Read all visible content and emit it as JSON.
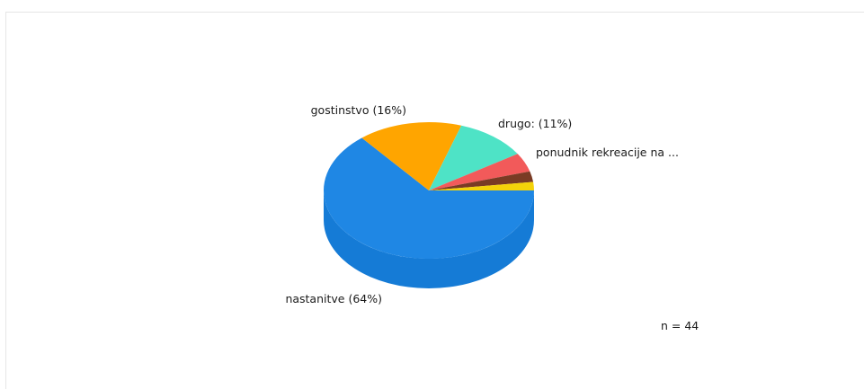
{
  "chart_data": {
    "type": "pie",
    "style": "3d",
    "title": "",
    "legend": "none",
    "slices": [
      {
        "label": "nastanitve (64%)",
        "value": 64,
        "color": "#1f87e4",
        "side": "#157bd6"
      },
      {
        "label": "gostinstvo (16%)",
        "value": 16,
        "color": "#ffa500",
        "side": "#e38f00"
      },
      {
        "label": "drugo: (11%)",
        "value": 11,
        "color": "#4ee3c6",
        "side": "#39c9ae"
      },
      {
        "label": "ponudnik rekreacije na ...",
        "value": 4.5,
        "color": "#f25a5a",
        "side": "#d94848"
      },
      {
        "label": "",
        "value": 2.5,
        "color": "#7a3b24",
        "side": "#63301d"
      },
      {
        "label": "",
        "value": 2,
        "color": "#f4d20a",
        "side": "#d9b906"
      }
    ],
    "note": "n = 44"
  }
}
